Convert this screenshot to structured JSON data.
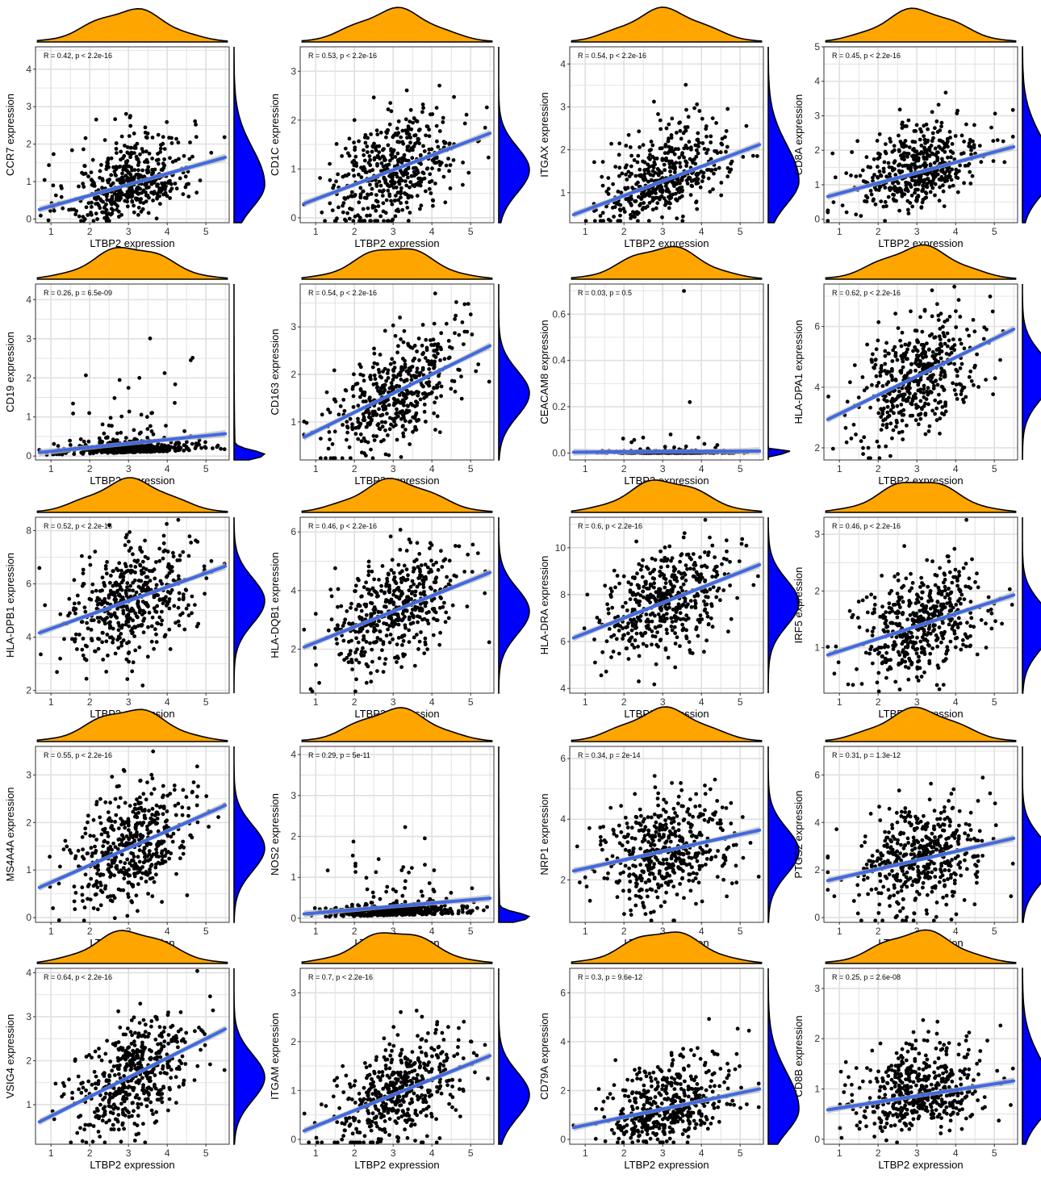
{
  "figure": {
    "rows": 5,
    "cols": 4,
    "colors": {
      "points": "#000000",
      "fit_line": "#4169E1",
      "confidence_band": "#bfbfbf",
      "x_density": "#FFA500",
      "y_density": "#0000FF",
      "grid": "#e0e0e0",
      "panel_border": "#333333"
    }
  },
  "chart_data": [
    {
      "type": "scatter",
      "xlabel": "LTBP2 expression",
      "ylabel": "CCR7 expression",
      "stat": "R = 0.42, p < 2.2e-16",
      "xlim": [
        0.6,
        5.6
      ],
      "ylim": [
        -0.1,
        4.6
      ],
      "xticks": [
        1,
        2,
        3,
        4,
        5
      ],
      "yticks": [
        0,
        1,
        2,
        3,
        4
      ],
      "r": 0.42,
      "fit": {
        "intercept": 0.05,
        "slope": 0.29
      },
      "y_density_skew": "right",
      "grid": true
    },
    {
      "type": "scatter",
      "xlabel": "LTBP2 expression",
      "ylabel": "CD1C expression",
      "stat": "R = 0.53, p < 2.2e-16",
      "xlim": [
        0.6,
        5.6
      ],
      "ylim": [
        -0.1,
        3.5
      ],
      "xticks": [
        1,
        2,
        3,
        4,
        5
      ],
      "yticks": [
        0,
        1,
        2,
        3
      ],
      "r": 0.53,
      "fit": {
        "intercept": 0.08,
        "slope": 0.3
      },
      "y_density_skew": "normal",
      "grid": true
    },
    {
      "type": "scatter",
      "xlabel": "LTBP2 expression",
      "ylabel": "ITGAX expression",
      "stat": "R = 0.54, p < 2.2e-16",
      "xlim": [
        0.6,
        5.6
      ],
      "ylim": [
        0.3,
        4.4
      ],
      "xticks": [
        1,
        2,
        3,
        4,
        5
      ],
      "yticks": [
        1,
        2,
        3,
        4
      ],
      "r": 0.54,
      "fit": {
        "intercept": 0.25,
        "slope": 0.34
      },
      "y_density_skew": "right",
      "grid": true
    },
    {
      "type": "scatter",
      "xlabel": "LTBP2 expression",
      "ylabel": "CD8A expression",
      "stat": "R = 0.45, p < 2.2e-16",
      "xlim": [
        0.6,
        5.6
      ],
      "ylim": [
        -0.1,
        5.0
      ],
      "xticks": [
        1,
        2,
        3,
        4,
        5
      ],
      "yticks": [
        0,
        1,
        2,
        3,
        4,
        5
      ],
      "r": 0.45,
      "fit": {
        "intercept": 0.45,
        "slope": 0.3
      },
      "y_density_skew": "right",
      "grid": true
    },
    {
      "type": "scatter",
      "xlabel": "LTBP2 expression",
      "ylabel": "CD19 expression",
      "stat": "R = 0.26, p = 6.5e-09",
      "xlim": [
        0.6,
        5.6
      ],
      "ylim": [
        -0.1,
        4.4
      ],
      "xticks": [
        1,
        2,
        3,
        4,
        5
      ],
      "yticks": [
        0,
        1,
        2,
        3,
        4
      ],
      "r": 0.26,
      "fit": {
        "intercept": 0.02,
        "slope": 0.1
      },
      "y_density_skew": "heavy",
      "grid": true
    },
    {
      "type": "scatter",
      "xlabel": "LTBP2 expression",
      "ylabel": "CD163 expression",
      "stat": "R = 0.54, p < 2.2e-16",
      "xlim": [
        0.6,
        5.6
      ],
      "ylim": [
        0.2,
        3.9
      ],
      "xticks": [
        1,
        2,
        3,
        4,
        5
      ],
      "yticks": [
        1,
        2,
        3
      ],
      "r": 0.54,
      "fit": {
        "intercept": 0.4,
        "slope": 0.4
      },
      "y_density_skew": "normal",
      "grid": true
    },
    {
      "type": "scatter",
      "xlabel": "LTBP2 expression",
      "ylabel": "CEACAM8 expression",
      "stat": "R = 0.03, p = 0.5",
      "xlim": [
        0.6,
        5.6
      ],
      "ylim": [
        -0.03,
        0.73
      ],
      "xticks": [
        1,
        2,
        3,
        4,
        5
      ],
      "yticks": [
        0.0,
        0.2,
        0.4,
        0.6
      ],
      "ytick_decimals": 1,
      "r": 0.03,
      "fit": {
        "intercept": 0.003,
        "slope": 0.001
      },
      "y_density_skew": "spike",
      "grid": true
    },
    {
      "type": "scatter",
      "xlabel": "LTBP2 expression",
      "ylabel": "HLA-DPA1 expression",
      "stat": "R = 0.62, p < 2.2e-16",
      "xlim": [
        0.6,
        5.6
      ],
      "ylim": [
        1.6,
        7.4
      ],
      "xticks": [
        1,
        2,
        3,
        4,
        5
      ],
      "yticks": [
        2,
        4,
        6
      ],
      "r": 0.62,
      "fit": {
        "intercept": 2.5,
        "slope": 0.62
      },
      "y_density_skew": "normal",
      "grid": true
    },
    {
      "type": "scatter",
      "xlabel": "LTBP2 expression",
      "ylabel": "HLA-DPB1 expression",
      "stat": "R = 0.52, p < 2.2e-16",
      "xlim": [
        0.6,
        5.6
      ],
      "ylim": [
        1.9,
        8.5
      ],
      "xticks": [
        1,
        2,
        3,
        4,
        5
      ],
      "yticks": [
        2,
        4,
        6,
        8
      ],
      "r": 0.52,
      "fit": {
        "intercept": 3.8,
        "slope": 0.52
      },
      "y_density_skew": "normal",
      "grid": true
    },
    {
      "type": "scatter",
      "xlabel": "LTBP2 expression",
      "ylabel": "HLA-DQB1 expression",
      "stat": "R = 0.46, p < 2.2e-16",
      "xlim": [
        0.6,
        5.6
      ],
      "ylim": [
        0.5,
        6.5
      ],
      "xticks": [
        1,
        2,
        3,
        4,
        5
      ],
      "yticks": [
        2,
        4,
        6
      ],
      "r": 0.46,
      "fit": {
        "intercept": 1.7,
        "slope": 0.53
      },
      "y_density_skew": "normal",
      "grid": true
    },
    {
      "type": "scatter",
      "xlabel": "LTBP2 expression",
      "ylabel": "HLA-DRA expression",
      "stat": "R = 0.6, p < 2.2e-16",
      "xlim": [
        0.6,
        5.6
      ],
      "ylim": [
        3.8,
        11.3
      ],
      "xticks": [
        1,
        2,
        3,
        4,
        5
      ],
      "yticks": [
        4,
        6,
        8,
        10
      ],
      "r": 0.6,
      "fit": {
        "intercept": 5.7,
        "slope": 0.65
      },
      "y_density_skew": "normal",
      "grid": true
    },
    {
      "type": "scatter",
      "xlabel": "LTBP2 expression",
      "ylabel": "IRF5 expression",
      "stat": "R = 0.46, p < 2.2e-16",
      "xlim": [
        0.6,
        5.6
      ],
      "ylim": [
        0.2,
        3.3
      ],
      "xticks": [
        1,
        2,
        3,
        4,
        5
      ],
      "yticks": [
        1,
        2,
        3
      ],
      "r": 0.46,
      "fit": {
        "intercept": 0.72,
        "slope": 0.22
      },
      "y_density_skew": "normal",
      "grid": true
    },
    {
      "type": "scatter",
      "xlabel": "LTBP2 expression",
      "ylabel": "MS4A4A expression",
      "stat": "R = 0.55, p < 2.2e-16",
      "xlim": [
        0.6,
        5.6
      ],
      "ylim": [
        -0.1,
        3.6
      ],
      "xticks": [
        1,
        2,
        3,
        4,
        5
      ],
      "yticks": [
        0,
        1,
        2,
        3
      ],
      "r": 0.55,
      "fit": {
        "intercept": 0.38,
        "slope": 0.36
      },
      "y_density_skew": "normal",
      "grid": true
    },
    {
      "type": "scatter",
      "xlabel": "LTBP2 expression",
      "ylabel": "NOS2 expression",
      "stat": "R = 0.29, p = 5e-11",
      "xlim": [
        0.6,
        5.6
      ],
      "ylim": [
        -0.1,
        4.2
      ],
      "xticks": [
        1,
        2,
        3,
        4,
        5
      ],
      "yticks": [
        0,
        1,
        2,
        3,
        4
      ],
      "r": 0.29,
      "fit": {
        "intercept": 0.05,
        "slope": 0.08
      },
      "y_density_skew": "heavy",
      "grid": true
    },
    {
      "type": "scatter",
      "xlabel": "LTBP2 expression",
      "ylabel": "NRP1 expression",
      "stat": "R = 0.34, p = 2e-14",
      "xlim": [
        0.6,
        5.6
      ],
      "ylim": [
        0.6,
        6.4
      ],
      "xticks": [
        1,
        2,
        3,
        4,
        5
      ],
      "yticks": [
        2,
        4,
        6
      ],
      "r": 0.34,
      "fit": {
        "intercept": 2.1,
        "slope": 0.28
      },
      "y_density_skew": "normal",
      "grid": true
    },
    {
      "type": "scatter",
      "xlabel": "LTBP2 expression",
      "ylabel": "PTGS2 expression",
      "stat": "R = 0.31, p = 1.3e-12",
      "xlim": [
        0.6,
        5.6
      ],
      "ylim": [
        -0.2,
        7.2
      ],
      "xticks": [
        1,
        2,
        3,
        4,
        5
      ],
      "yticks": [
        0,
        2,
        4,
        6
      ],
      "r": 0.31,
      "fit": {
        "intercept": 1.3,
        "slope": 0.37
      },
      "y_density_skew": "normal",
      "grid": true
    },
    {
      "type": "scatter",
      "xlabel": "LTBP2 expression",
      "ylabel": "VSIG4 expression",
      "stat": "R = 0.64, p < 2.2e-16",
      "xlim": [
        0.6,
        5.6
      ],
      "ylim": [
        0.1,
        4.1
      ],
      "xticks": [
        1,
        2,
        3,
        4,
        5
      ],
      "yticks": [
        1,
        2,
        3,
        4
      ],
      "r": 0.64,
      "fit": {
        "intercept": 0.3,
        "slope": 0.44
      },
      "y_density_skew": "normal",
      "grid": true
    },
    {
      "type": "scatter",
      "xlabel": "LTBP2 expression",
      "ylabel": "ITGAM expression",
      "stat": "R = 0.7, p < 2.2e-16",
      "xlim": [
        0.6,
        5.6
      ],
      "ylim": [
        -0.1,
        3.5
      ],
      "xticks": [
        1,
        2,
        3,
        4,
        5
      ],
      "yticks": [
        0,
        1,
        2,
        3
      ],
      "r": 0.7,
      "fit": {
        "intercept": -0.05,
        "slope": 0.32
      },
      "y_density_skew": "normal",
      "grid": true
    },
    {
      "type": "scatter",
      "xlabel": "LTBP2 expression",
      "ylabel": "CD79A expression",
      "stat": "R = 0.3, p = 9.6e-12",
      "xlim": [
        0.6,
        5.6
      ],
      "ylim": [
        -0.2,
        7.0
      ],
      "xticks": [
        1,
        2,
        3,
        4,
        5
      ],
      "yticks": [
        0,
        2,
        4,
        6
      ],
      "r": 0.3,
      "fit": {
        "intercept": 0.25,
        "slope": 0.33
      },
      "y_density_skew": "right",
      "grid": true
    },
    {
      "type": "scatter",
      "xlabel": "LTBP2 expression",
      "ylabel": "CD8B expression",
      "stat": "R = 0.25, p = 2.6e-08",
      "xlim": [
        0.6,
        5.6
      ],
      "ylim": [
        -0.1,
        3.4
      ],
      "xticks": [
        1,
        2,
        3,
        4,
        5
      ],
      "yticks": [
        0,
        1,
        2,
        3
      ],
      "r": 0.25,
      "fit": {
        "intercept": 0.5,
        "slope": 0.12
      },
      "y_density_skew": "right",
      "grid": true
    }
  ]
}
